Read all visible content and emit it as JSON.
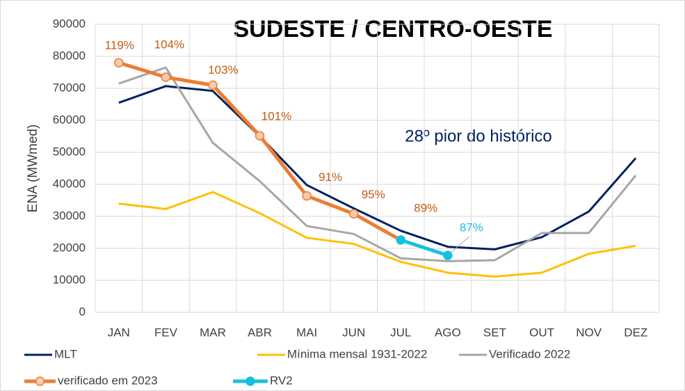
{
  "chart_data": {
    "type": "line",
    "title": "SUDESTE / CENTRO-OESTE",
    "annotation": "28º pior do histórico",
    "y_label": "ENA (MWmed)",
    "categories": [
      "JAN",
      "FEV",
      "MAR",
      "ABR",
      "MAI",
      "JUN",
      "JUL",
      "AGO",
      "SET",
      "OUT",
      "NOV",
      "DEZ"
    ],
    "ylim": [
      0,
      90000
    ],
    "yticks": [
      0,
      10000,
      20000,
      30000,
      40000,
      50000,
      60000,
      70000,
      80000,
      90000
    ],
    "grid": true,
    "legend": "bottom",
    "series": [
      {
        "name": "MLT",
        "color": "#002060",
        "values": [
          65500,
          70700,
          69200,
          55000,
          39800,
          32500,
          25500,
          20500,
          19700,
          23500,
          31500,
          48200
        ]
      },
      {
        "name": "Mínima mensal 1931-2022",
        "color": "#ffc000",
        "values": [
          34000,
          32300,
          37600,
          31000,
          23300,
          21400,
          15800,
          12400,
          11200,
          12400,
          18300,
          20800
        ]
      },
      {
        "name": "Verificado 2022",
        "color": "#a6a6a6",
        "values": [
          71500,
          76500,
          53000,
          41000,
          27000,
          24500,
          16900,
          16000,
          16300,
          24800,
          24800,
          42800
        ]
      },
      {
        "name": "verificado em 2023",
        "color": "#ed7d31",
        "marker_fill": "#f8cbad",
        "values": [
          78000,
          73500,
          71000,
          55200,
          36400,
          30800,
          22600,
          null,
          null,
          null,
          null,
          null
        ],
        "point_labels": [
          "119%",
          "104%",
          "103%",
          "101%",
          "91%",
          "95%",
          "89%",
          null,
          null,
          null,
          null,
          null
        ]
      },
      {
        "name": "RV2",
        "color": "#17c0e0",
        "marker_fill": "#17c0e0",
        "values": [
          null,
          null,
          null,
          null,
          null,
          null,
          22600,
          17800,
          null,
          null,
          null,
          null
        ],
        "point_labels": [
          null,
          null,
          null,
          null,
          null,
          null,
          null,
          "87%",
          null,
          null,
          null,
          null
        ]
      }
    ]
  }
}
